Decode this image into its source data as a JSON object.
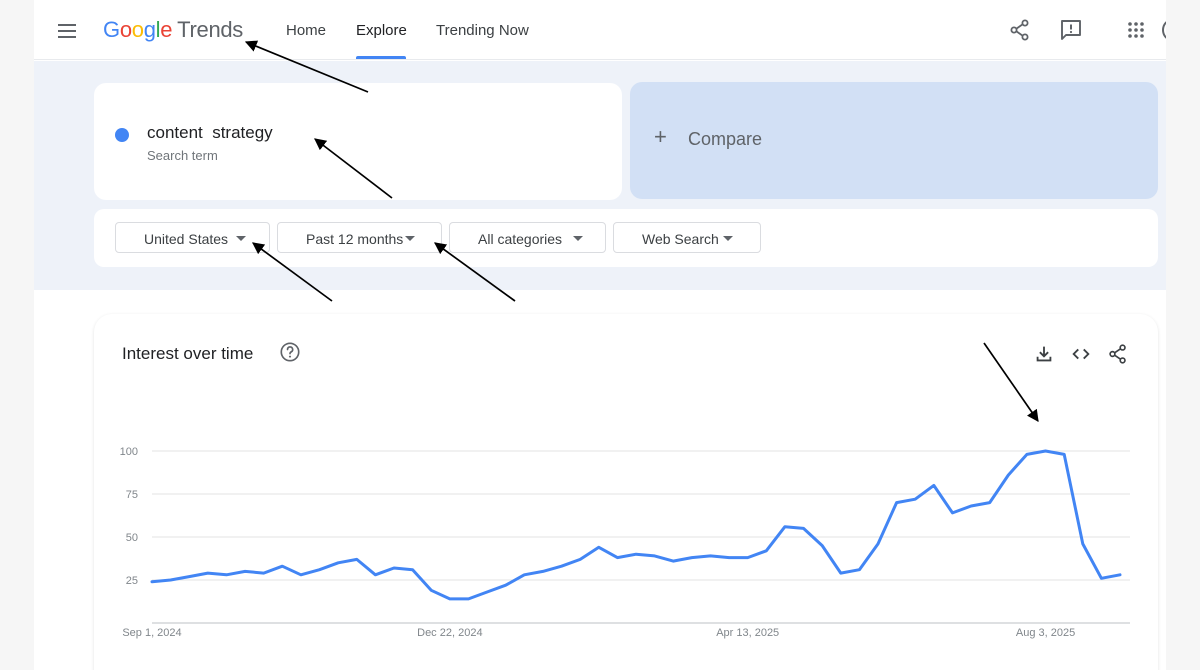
{
  "header": {
    "logo_google": "Google",
    "logo_trends": "Trends",
    "nav": [
      "Home",
      "Explore",
      "Trending Now"
    ],
    "active_tab": "Explore",
    "icons": [
      "menu-icon",
      "share-icon",
      "feedback-icon",
      "apps-icon"
    ]
  },
  "search": {
    "term": "content  strategy",
    "term_sublabel": "Search term",
    "term_color": "#4285f4",
    "compare_label": "Compare"
  },
  "filters": {
    "region": "United States",
    "time_range": "Past 12 months",
    "category": "All categories",
    "property": "Web Search"
  },
  "chart_section": {
    "title": "Interest over time",
    "icons": [
      "help-icon",
      "download-icon",
      "embed-icon",
      "share-icon"
    ]
  },
  "chart_data": {
    "type": "line",
    "title": "",
    "xlabel": "",
    "ylabel": "",
    "ylim": [
      0,
      100
    ],
    "yticks": [
      "100",
      "75",
      "50",
      "25"
    ],
    "ytick_values": [
      100,
      75,
      50,
      25
    ],
    "xtick_labels": [
      "Sep 1, 2024",
      "Dec 22, 2024",
      "Apr 13, 2025",
      "Aug 3, 2025"
    ],
    "xtick_indices": [
      0,
      16,
      32,
      48
    ],
    "grid": true,
    "series_color": "#4285f4",
    "series": [
      {
        "name": "content  strategy",
        "values": [
          24,
          25,
          27,
          29,
          28,
          30,
          29,
          33,
          28,
          31,
          35,
          37,
          28,
          32,
          31,
          19,
          14,
          14,
          18,
          22,
          28,
          30,
          33,
          37,
          44,
          38,
          40,
          39,
          36,
          38,
          39,
          38,
          38,
          42,
          56,
          55,
          45,
          29,
          31,
          46,
          70,
          72,
          80,
          64,
          68,
          70,
          86,
          98,
          100,
          98,
          46,
          26,
          28
        ]
      }
    ]
  }
}
